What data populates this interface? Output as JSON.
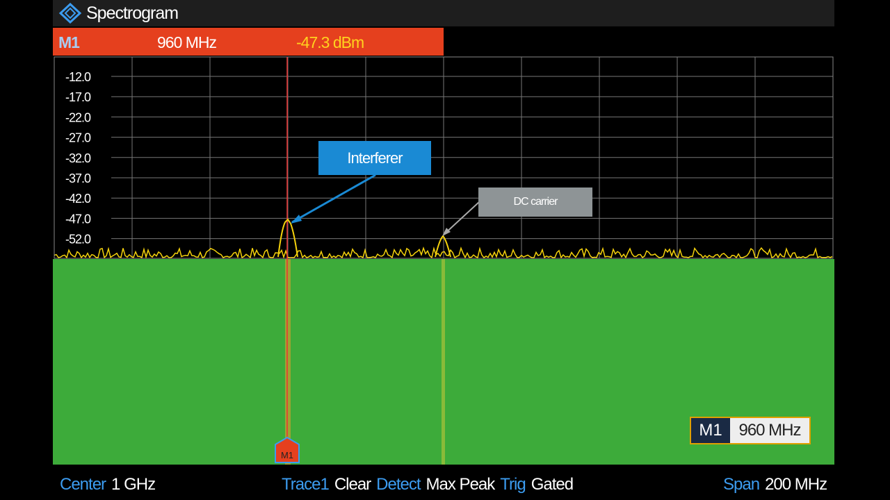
{
  "header": {
    "title": "Spectrogram"
  },
  "marker_bar": {
    "marker": "M1",
    "frequency": "960 MHz",
    "level": "-47.3 dBm"
  },
  "y_axis": {
    "labels": [
      "-12.0",
      "-17.0",
      "-22.0",
      "-27.0",
      "-32.0",
      "-37.0",
      "-42.0",
      "-47.0",
      "-52.0"
    ]
  },
  "annotations": [
    {
      "label": "Interferer"
    },
    {
      "label": "DC carrier"
    }
  ],
  "marker_info": {
    "marker": "M1",
    "frequency": "960 MHz"
  },
  "marker_tag": "M1",
  "status_bar": {
    "center": {
      "label": "Center",
      "value": "1 GHz"
    },
    "trace": {
      "label": "Trace1",
      "value": "Clear"
    },
    "detect": {
      "label": "Detect",
      "value": "Max Peak"
    },
    "trig": {
      "label": "Trig",
      "value": "Gated"
    },
    "span": {
      "label": "Span",
      "value": "200 MHz"
    }
  }
}
